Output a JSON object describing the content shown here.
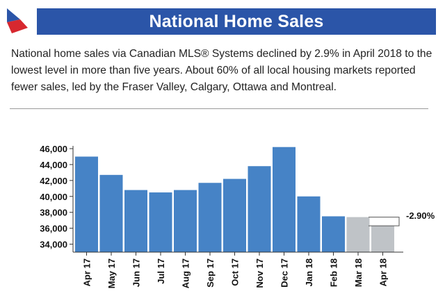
{
  "header": {
    "title": "National Home Sales"
  },
  "description": "National home sales via Canadian MLS® Systems declined by 2.9% in April 2018 to the lowest level in more than five years. About 60% of all local housing markets reported fewer sales, led by the Fraser Valley, Calgary, Ottawa and Montreal.",
  "colors": {
    "brand_blue": "#2b55a8",
    "bar_blue": "#4683c6",
    "bar_gray": "#bfc3c7",
    "logo_red": "#d7282f"
  },
  "chart_data": {
    "type": "bar",
    "title": "",
    "xlabel": "",
    "ylabel": "",
    "ylim": [
      33000,
      46000
    ],
    "y_ticks": [
      34000,
      36000,
      38000,
      40000,
      42000,
      44000,
      46000
    ],
    "y_tick_labels": [
      "34,000",
      "36,000",
      "38,000",
      "40,000",
      "42,000",
      "44,000",
      "46,000"
    ],
    "categories": [
      "Apr 17",
      "May 17",
      "Jun 17",
      "Jul 17",
      "Aug 17",
      "Sep 17",
      "Oct 17",
      "Nov 17",
      "Dec 17",
      "Jan 18",
      "Feb 18",
      "Mar 18",
      "Apr 18"
    ],
    "values": [
      45000,
      42700,
      40800,
      40500,
      40800,
      41700,
      42200,
      43800,
      46200,
      40000,
      37500,
      37400,
      36300
    ],
    "highlighted": [
      "Mar 18",
      "Apr 18"
    ],
    "annotation": {
      "label": "-2.90%",
      "from": "Mar 18",
      "to": "Apr 18"
    },
    "grid": false
  }
}
